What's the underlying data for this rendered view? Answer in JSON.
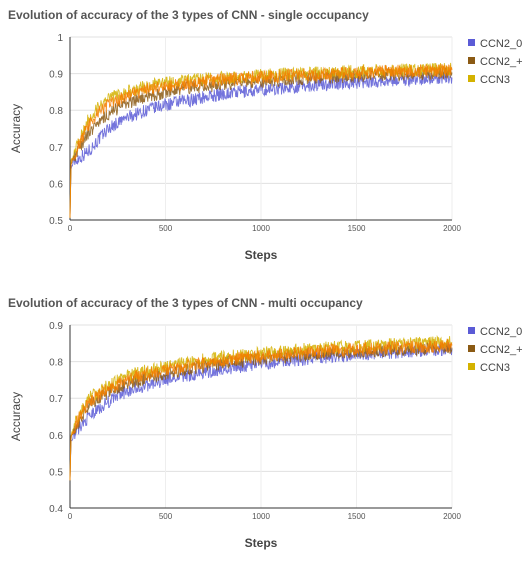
{
  "chart_data": [
    {
      "type": "line",
      "title": "Evolution of accuracy of the 3 types of CNN - single occupancy",
      "xlabel": "Steps",
      "ylabel": "Accuracy",
      "xlim": [
        0,
        2000
      ],
      "ylim": [
        0.5,
        1
      ],
      "x_ticks": [
        "0",
        "500",
        "1000",
        "1500",
        "2000"
      ],
      "y_ticks": [
        "0.5",
        "0.6",
        "0.7",
        "0.8",
        "0.9",
        "1"
      ],
      "grid": true,
      "legend_position": "top-right",
      "series": [
        {
          "name": "CCN2_0",
          "color": "#5b5bd6",
          "x": [
            0,
            5,
            20,
            50,
            100,
            150,
            200,
            300,
            400,
            500,
            600,
            700,
            800,
            900,
            1000,
            1100,
            1200,
            1300,
            1400,
            1500,
            1600,
            1700,
            1800,
            1900,
            2000
          ],
          "y": [
            0.51,
            0.64,
            0.66,
            0.67,
            0.69,
            0.72,
            0.75,
            0.78,
            0.8,
            0.815,
            0.825,
            0.835,
            0.845,
            0.85,
            0.855,
            0.86,
            0.865,
            0.87,
            0.873,
            0.876,
            0.88,
            0.882,
            0.885,
            0.887,
            0.889
          ]
        },
        {
          "name": "CCN2_+",
          "color": "#8b5a14",
          "x": [
            0,
            5,
            20,
            50,
            100,
            150,
            200,
            300,
            400,
            500,
            600,
            700,
            800,
            900,
            1000,
            1100,
            1200,
            1300,
            1400,
            1500,
            1600,
            1700,
            1800,
            1900,
            2000
          ],
          "y": [
            0.51,
            0.65,
            0.67,
            0.7,
            0.74,
            0.77,
            0.79,
            0.82,
            0.835,
            0.85,
            0.86,
            0.865,
            0.87,
            0.875,
            0.878,
            0.882,
            0.886,
            0.889,
            0.892,
            0.894,
            0.896,
            0.898,
            0.9,
            0.901,
            0.903
          ]
        },
        {
          "name": "CCN3",
          "color": "#d4b200",
          "x": [
            0,
            5,
            20,
            50,
            100,
            150,
            200,
            300,
            400,
            500,
            600,
            700,
            800,
            900,
            1000,
            1100,
            1200,
            1300,
            1400,
            1500,
            1600,
            1700,
            1800,
            1900,
            2000
          ],
          "y": [
            0.51,
            0.66,
            0.68,
            0.72,
            0.78,
            0.81,
            0.83,
            0.85,
            0.865,
            0.875,
            0.88,
            0.885,
            0.89,
            0.893,
            0.896,
            0.898,
            0.9,
            0.902,
            0.904,
            0.906,
            0.907,
            0.909,
            0.91,
            0.911,
            0.913
          ]
        },
        {
          "name": "",
          "color": "#f57c00",
          "x": [
            0,
            5,
            20,
            50,
            100,
            150,
            200,
            300,
            400,
            500,
            600,
            700,
            800,
            900,
            1000,
            1100,
            1200,
            1300,
            1400,
            1500,
            1600,
            1700,
            1800,
            1900,
            2000
          ],
          "y": [
            0.51,
            0.655,
            0.675,
            0.71,
            0.76,
            0.795,
            0.815,
            0.84,
            0.855,
            0.865,
            0.872,
            0.878,
            0.883,
            0.887,
            0.89,
            0.893,
            0.896,
            0.898,
            0.9,
            0.902,
            0.904,
            0.906,
            0.907,
            0.908,
            0.91
          ]
        }
      ]
    },
    {
      "type": "line",
      "title": "Evolution of accuracy of the 3 types of CNN - multi occupancy",
      "xlabel": "Steps",
      "ylabel": "Accuracy",
      "xlim": [
        0,
        2000
      ],
      "ylim": [
        0.4,
        0.9
      ],
      "x_ticks": [
        "0",
        "500",
        "1000",
        "1500",
        "2000"
      ],
      "y_ticks": [
        "0.4",
        "0.5",
        "0.6",
        "0.7",
        "0.8",
        "0.9"
      ],
      "grid": true,
      "legend_position": "top-right",
      "series": [
        {
          "name": "CCN2_0",
          "color": "#5b5bd6",
          "x": [
            0,
            5,
            20,
            50,
            100,
            150,
            200,
            300,
            400,
            500,
            600,
            700,
            800,
            900,
            1000,
            1100,
            1200,
            1300,
            1400,
            1500,
            1600,
            1700,
            1800,
            1900,
            2000
          ],
          "y": [
            0.48,
            0.58,
            0.6,
            0.62,
            0.65,
            0.67,
            0.69,
            0.72,
            0.735,
            0.75,
            0.76,
            0.77,
            0.78,
            0.787,
            0.794,
            0.8,
            0.806,
            0.811,
            0.815,
            0.819,
            0.823,
            0.826,
            0.829,
            0.832,
            0.835
          ]
        },
        {
          "name": "CCN2_+",
          "color": "#8b5a14",
          "x": [
            0,
            5,
            20,
            50,
            100,
            150,
            200,
            300,
            400,
            500,
            600,
            700,
            800,
            900,
            1000,
            1100,
            1200,
            1300,
            1400,
            1500,
            1600,
            1700,
            1800,
            1900,
            2000
          ],
          "y": [
            0.48,
            0.59,
            0.61,
            0.64,
            0.68,
            0.7,
            0.715,
            0.74,
            0.755,
            0.768,
            0.778,
            0.787,
            0.795,
            0.802,
            0.808,
            0.813,
            0.817,
            0.821,
            0.824,
            0.827,
            0.83,
            0.832,
            0.834,
            0.836,
            0.838
          ]
        },
        {
          "name": "CCN3",
          "color": "#d4b200",
          "x": [
            0,
            5,
            20,
            50,
            100,
            150,
            200,
            300,
            400,
            500,
            600,
            700,
            800,
            900,
            1000,
            1100,
            1200,
            1300,
            1400,
            1500,
            1600,
            1700,
            1800,
            1900,
            2000
          ],
          "y": [
            0.48,
            0.6,
            0.62,
            0.66,
            0.7,
            0.72,
            0.735,
            0.76,
            0.775,
            0.787,
            0.797,
            0.805,
            0.812,
            0.818,
            0.823,
            0.828,
            0.832,
            0.836,
            0.839,
            0.842,
            0.845,
            0.847,
            0.849,
            0.851,
            0.853
          ]
        },
        {
          "name": "",
          "color": "#f57c00",
          "x": [
            0,
            5,
            20,
            50,
            100,
            150,
            200,
            300,
            400,
            500,
            600,
            700,
            800,
            900,
            1000,
            1100,
            1200,
            1300,
            1400,
            1500,
            1600,
            1700,
            1800,
            1900,
            2000
          ],
          "y": [
            0.48,
            0.595,
            0.615,
            0.65,
            0.69,
            0.71,
            0.725,
            0.75,
            0.765,
            0.778,
            0.788,
            0.796,
            0.803,
            0.81,
            0.815,
            0.82,
            0.824,
            0.828,
            0.831,
            0.834,
            0.836,
            0.838,
            0.84,
            0.842,
            0.844
          ]
        }
      ]
    }
  ]
}
